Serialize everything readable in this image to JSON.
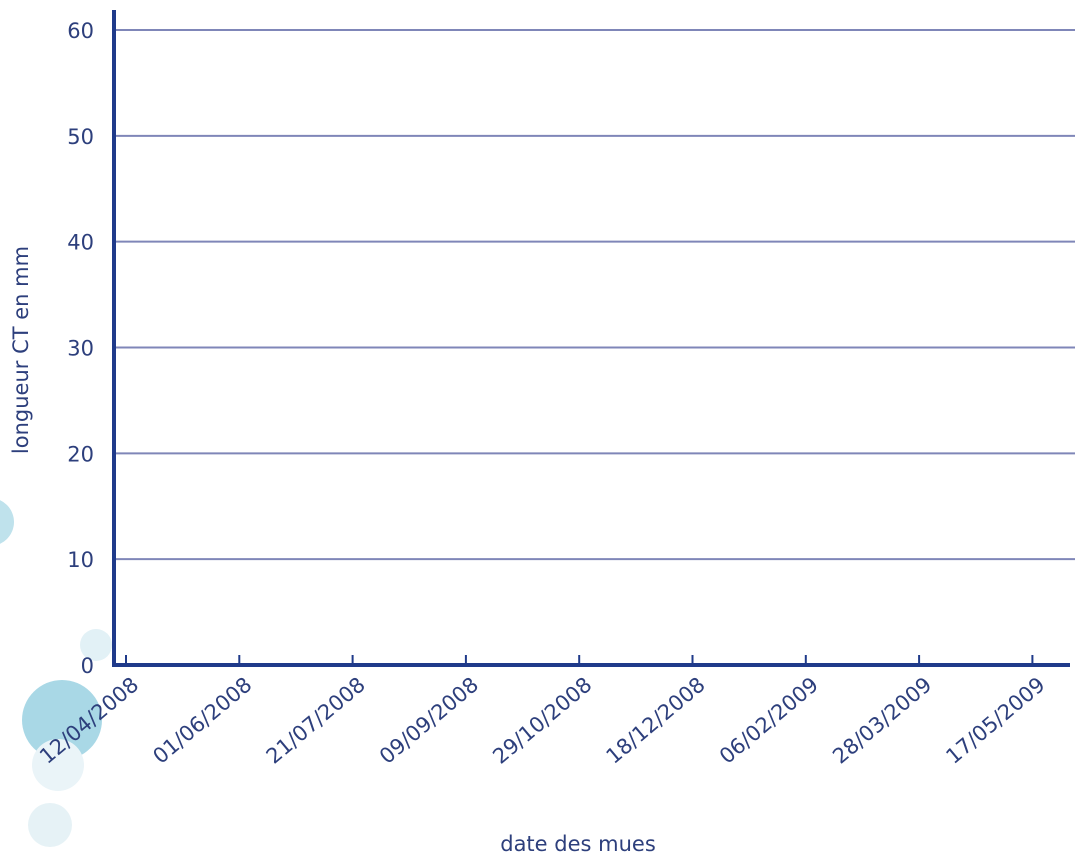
{
  "chart_data": {
    "type": "line",
    "title": "",
    "xlabel": "date des mues",
    "ylabel": "longueur CT en mm",
    "x_ticks": [
      "12/04/2008",
      "01/06/2008",
      "21/07/2008",
      "09/09/2008",
      "29/10/2008",
      "18/12/2008",
      "06/02/2009",
      "28/03/2009",
      "17/05/2009"
    ],
    "y_ticks": [
      0,
      10,
      20,
      30,
      40,
      50,
      60
    ],
    "ylim": [
      0,
      60
    ],
    "xlim": [
      "12/04/2008",
      "17/05/2009"
    ],
    "grid": true,
    "series": []
  },
  "colors": {
    "axis": "#1f3a8a",
    "gridline": "#7f86b8",
    "text": "#2d3f7c",
    "bubble_dark": "#a9d8e6",
    "bubble_light": "#e2f1f6"
  }
}
